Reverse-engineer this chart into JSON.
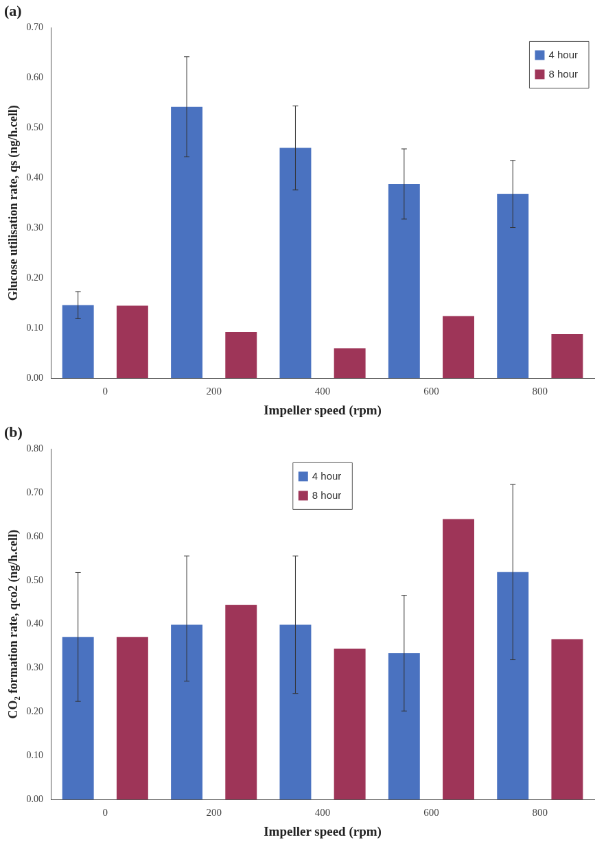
{
  "chart_data": [
    {
      "type": "bar",
      "title": "(a)",
      "xlabel": "Impeller speed (rpm)",
      "ylabel": "Glucose utilisation rate, qs (ng/h.cell)",
      "categories": [
        "0",
        "200",
        "400",
        "600",
        "800"
      ],
      "series": [
        {
          "name": "4 hour",
          "color": "#4a72c0",
          "values": [
            0.146,
            0.542,
            0.46,
            0.388,
            0.368
          ],
          "errors": [
            0.027,
            0.1,
            0.084,
            0.07,
            0.067
          ]
        },
        {
          "name": "8 hour",
          "color": "#9e3558",
          "values": [
            0.145,
            0.092,
            0.06,
            0.124,
            0.088
          ]
        }
      ],
      "ylim": [
        0,
        0.7
      ],
      "yticks": [
        {
          "value": 0,
          "label": "0.00"
        },
        {
          "value": 0.1,
          "label": "0.10"
        },
        {
          "value": 0.2,
          "label": "0.20"
        },
        {
          "value": 0.3,
          "label": "0.30"
        },
        {
          "value": 0.4,
          "label": "0.40"
        },
        {
          "value": 0.5,
          "label": "0.50"
        },
        {
          "value": 0.6,
          "label": "0.60"
        },
        {
          "value": 0.7,
          "label": "0.70"
        }
      ],
      "grid": false,
      "legend": "top right"
    },
    {
      "type": "bar",
      "title": "(b)",
      "xlabel": "Impeller speed (rpm)",
      "ylabel": "CO₂ formation rate, qco2 (ng/h.cell)",
      "categories": [
        "0",
        "200",
        "400",
        "600",
        "800"
      ],
      "series": [
        {
          "name": "4 hour",
          "color": "#4a72c0",
          "values": [
            0.371,
            0.399,
            0.399,
            0.334,
            0.519
          ],
          "errors": [
            0.147,
            [
              0.27,
              0.556
            ],
            0.157,
            0.132,
            0.2
          ]
        },
        {
          "name": "8 hour",
          "color": "#9e3558",
          "values": [
            0.371,
            0.444,
            0.344,
            0.64,
            0.366
          ]
        }
      ],
      "ylim": [
        0,
        0.8
      ],
      "yticks": [
        {
          "value": 0,
          "label": "0.00"
        },
        {
          "value": 0.1,
          "label": "0.10"
        },
        {
          "value": 0.2,
          "label": "0.20"
        },
        {
          "value": 0.3,
          "label": "0.30"
        },
        {
          "value": 0.4,
          "label": "0.40"
        },
        {
          "value": 0.5,
          "label": "0.50"
        },
        {
          "value": 0.6,
          "label": "0.60"
        },
        {
          "value": 0.7,
          "label": "0.70"
        },
        {
          "value": 0.8,
          "label": "0.80"
        }
      ],
      "grid": false,
      "legend": "top"
    }
  ]
}
